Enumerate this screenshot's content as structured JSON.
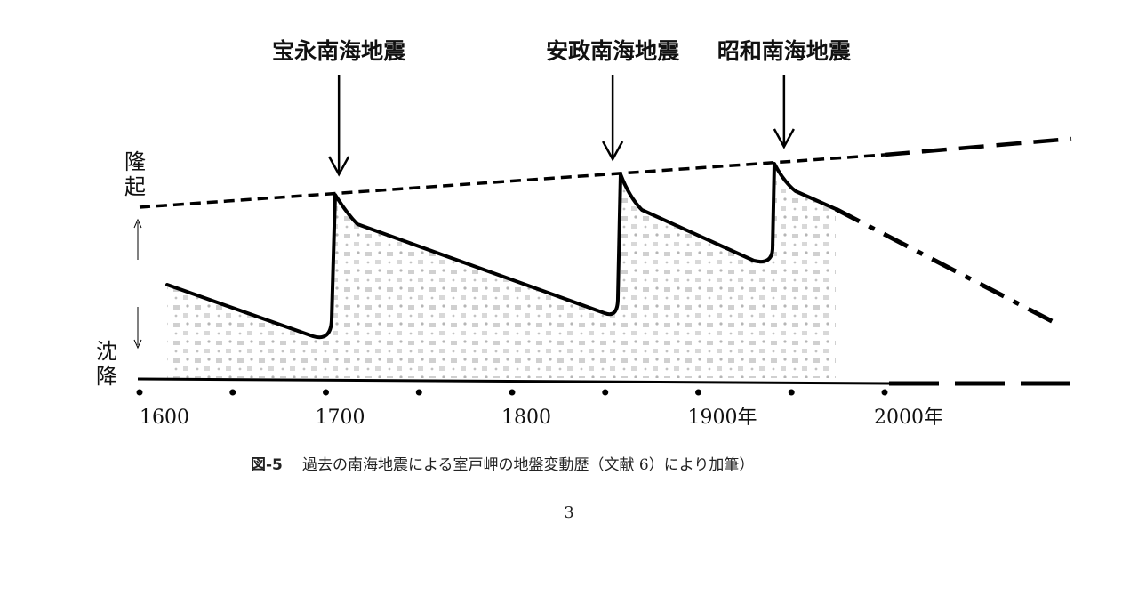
{
  "quakes": [
    {
      "label": "宝永南海地震",
      "year": 1707
    },
    {
      "label": "安政南海地震",
      "year": 1854
    },
    {
      "label": "昭和南海地震",
      "year": 1946
    }
  ],
  "axis": {
    "up_label": [
      "隆",
      "起"
    ],
    "down_label": [
      "沈",
      "降"
    ],
    "ticks": [
      {
        "year": 1600,
        "label": "1600"
      },
      {
        "year": 1700,
        "label": "1700"
      },
      {
        "year": 1800,
        "label": "1800"
      },
      {
        "year": 1900,
        "label": "1900年"
      },
      {
        "year": 2000,
        "label": "2000年"
      }
    ],
    "dot_years": [
      1600,
      1650,
      1700,
      1750,
      1800,
      1850,
      1900,
      1950,
      2000
    ]
  },
  "caption": {
    "figure": "図-5",
    "text": "過去の南海地震による室戸岬の地盤変動歴（文献 6）により加筆）"
  },
  "page_number": "3"
}
